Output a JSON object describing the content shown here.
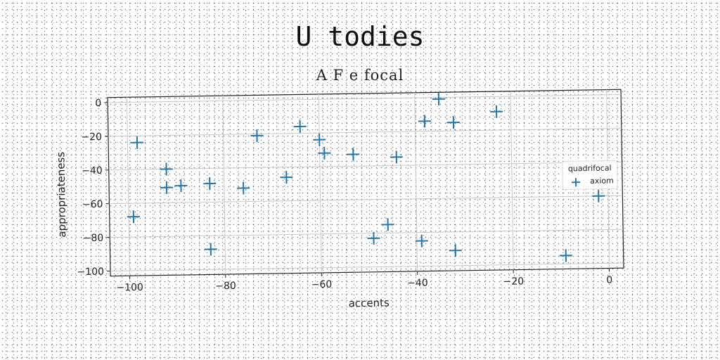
{
  "chart_data": {
    "type": "scatter",
    "title": "U todies",
    "subtitle": "A F e focal",
    "xlabel": "accents",
    "ylabel": "appropriateness",
    "xlim": [
      -104,
      3
    ],
    "ylim": [
      -103,
      3
    ],
    "xticks": [
      -100,
      -80,
      -60,
      -40,
      -20,
      0
    ],
    "yticks": [
      0,
      -20,
      -40,
      -60,
      -80,
      -100
    ],
    "grid": true,
    "legend": {
      "title": "quadrifocal",
      "placement": "right"
    },
    "marker_color": "#1f77b4",
    "series": [
      {
        "name": "axiom",
        "points": [
          {
            "x": -98,
            "y": -24
          },
          {
            "x": -99,
            "y": -68
          },
          {
            "x": -92,
            "y": -40
          },
          {
            "x": -92,
            "y": -51
          },
          {
            "x": -89,
            "y": -50
          },
          {
            "x": -83,
            "y": -49
          },
          {
            "x": -83,
            "y": -88
          },
          {
            "x": -76,
            "y": -52
          },
          {
            "x": -73,
            "y": -21
          },
          {
            "x": -67,
            "y": -46
          },
          {
            "x": -64,
            "y": -16
          },
          {
            "x": -60,
            "y": -24
          },
          {
            "x": -59,
            "y": -32
          },
          {
            "x": -53,
            "y": -33
          },
          {
            "x": -49,
            "y": -83
          },
          {
            "x": -46,
            "y": -75
          },
          {
            "x": -44,
            "y": -35
          },
          {
            "x": -39,
            "y": -85
          },
          {
            "x": -38,
            "y": -14
          },
          {
            "x": -35,
            "y": -1
          },
          {
            "x": -32,
            "y": -15
          },
          {
            "x": -32,
            "y": -91
          },
          {
            "x": -23,
            "y": -9
          },
          {
            "x": -9,
            "y": -95
          },
          {
            "x": -2,
            "y": -60
          }
        ]
      }
    ]
  }
}
